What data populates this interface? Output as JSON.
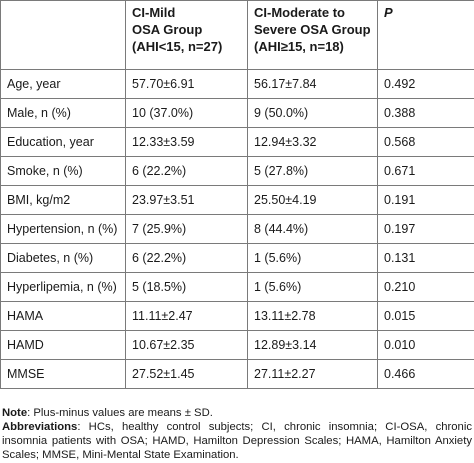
{
  "table": {
    "headers": [
      {
        "lines": [
          ""
        ]
      },
      {
        "lines": [
          "CI-Mild",
          "OSA Group",
          "(AHI<15, n=27)"
        ]
      },
      {
        "lines": [
          "CI-Moderate to",
          "Severe OSA Group",
          "(AHI≥15, n=18)"
        ]
      },
      {
        "lines": [
          "P"
        ]
      }
    ],
    "rows": [
      [
        "Age, year",
        "57.70±6.91",
        "56.17±7.84",
        "0.492"
      ],
      [
        "Male, n (%)",
        "10 (37.0%)",
        "9 (50.0%)",
        "0.388"
      ],
      [
        "Education, year",
        "12.33±3.59",
        "12.94±3.32",
        "0.568"
      ],
      [
        "Smoke, n (%)",
        "6 (22.2%)",
        "5 (27.8%)",
        "0.671"
      ],
      [
        "BMI, kg/m2",
        "23.97±3.51",
        "25.50±4.19",
        "0.191"
      ],
      [
        "Hypertension, n (%)",
        "7 (25.9%)",
        "8 (44.4%)",
        "0.197"
      ],
      [
        "Diabetes, n (%)",
        "6 (22.2%)",
        "1 (5.6%)",
        "0.131"
      ],
      [
        "Hyperlipemia, n (%)",
        "5 (18.5%)",
        "1 (5.6%)",
        "0.210"
      ],
      [
        "HAMA",
        "11.11±2.47",
        "13.11±2.78",
        "0.015"
      ],
      [
        "HAMD",
        "10.67±2.35",
        "12.89±3.14",
        "0.010"
      ],
      [
        "MMSE",
        "27.52±1.45",
        "27.11±2.27",
        "0.466"
      ]
    ]
  },
  "notes": {
    "note_label": "Note",
    "note_text": ": Plus-minus values are means ± SD.",
    "abbr_label": "Abbreviations",
    "abbr_text": ": HCs, healthy control subjects; CI, chronic insomnia; CI-OSA, chronic insomnia patients with OSA; HAMD, Hamilton Depression Scales; HAMA, Hamilton Anxiety Scales; MMSE, Mini-Mental State Examination."
  }
}
